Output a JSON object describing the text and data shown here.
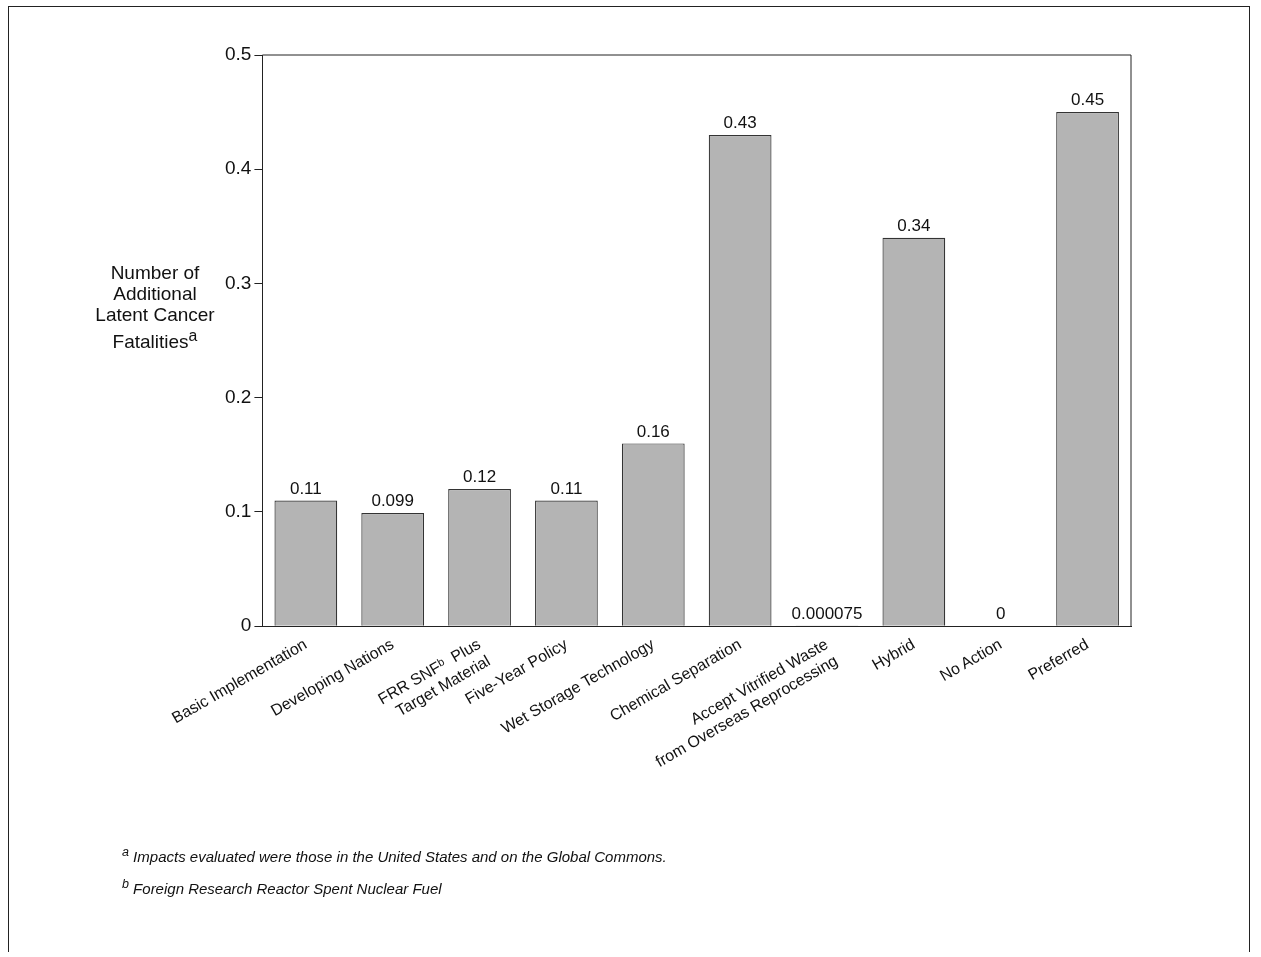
{
  "chart_data": {
    "type": "bar",
    "ylabel": "Number of Additional Latent Cancer Fatalities$^{a}$",
    "categories": [
      "Basic Implementation",
      "Developing Nations",
      "FRR SNFᵇ  Plus\nTarget Material",
      "Five-Year Policy",
      "Wet Storage Technology",
      "Chemical Separation",
      "Accept Vitrified Waste\nfrom Overseas Reprocessing",
      "Hybrid",
      "No Action",
      "Preferred"
    ],
    "values": [
      0.11,
      0.099,
      0.12,
      0.11,
      0.16,
      0.43,
      7.5e-05,
      0.34,
      0,
      0.45
    ],
    "color": "#b4b4b4",
    "ylim": [
      0,
      0.5
    ],
    "yticks": [
      0,
      0.1,
      0.2,
      0.3,
      0.4,
      0.5
    ],
    "value_labels": [
      "0.11",
      "0.099",
      "0.12",
      "0.11",
      "0.16",
      "0.43",
      "0.000075",
      "0.34",
      "0",
      "0.45"
    ],
    "grid": false,
    "legend": false,
    "annotations": [
      "$^{a}$ Impacts evaluated were those in the United States and on the Global Commons.",
      "$^{b}$ Foreign Research Reactor Spent Nuclear Fuel"
    ]
  }
}
